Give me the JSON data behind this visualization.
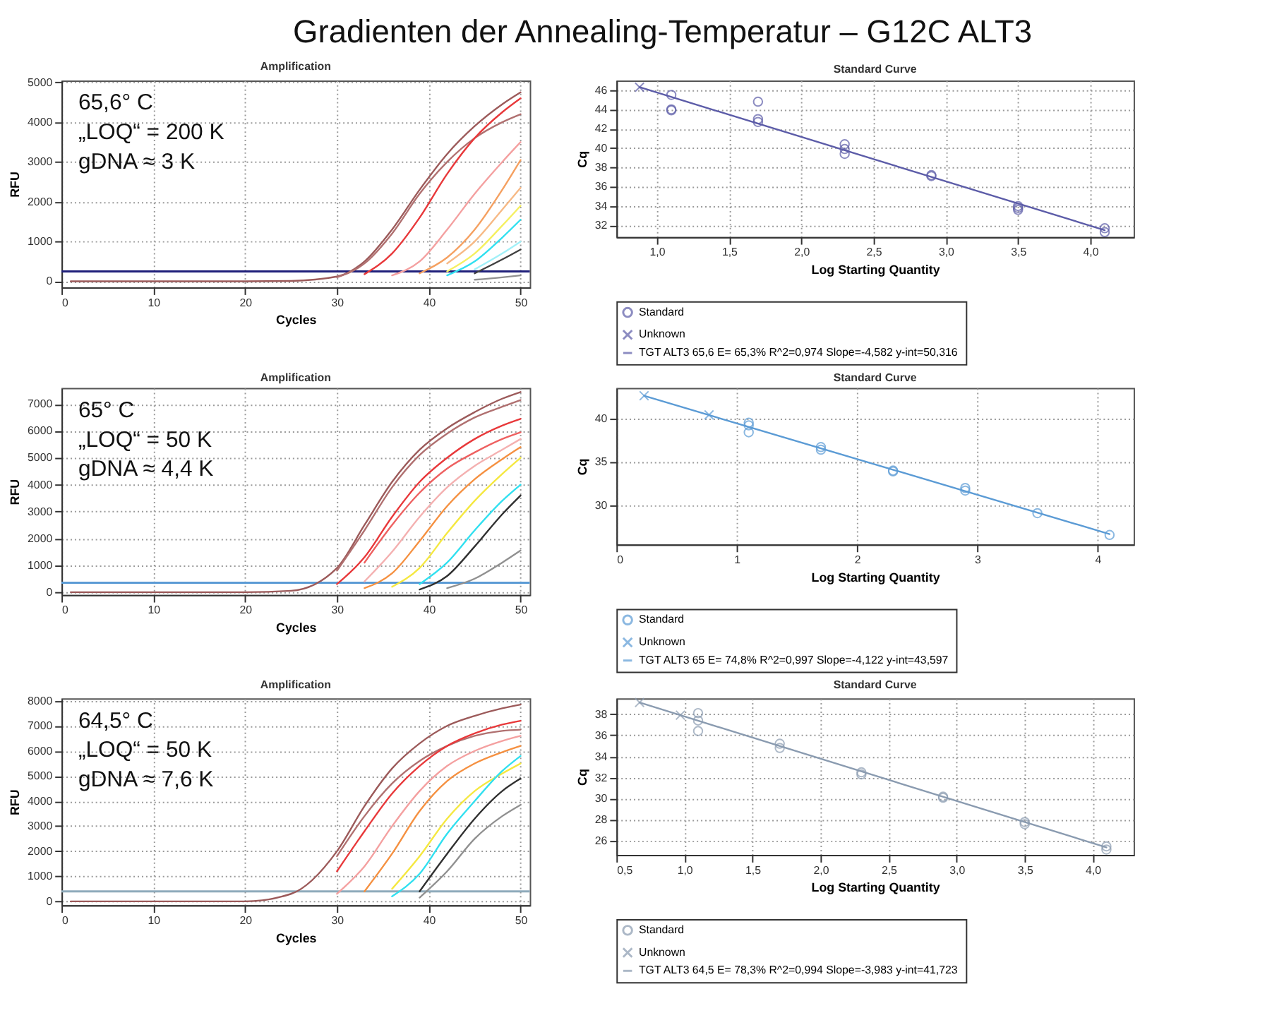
{
  "chart_data": [
    {
      "type": "other",
      "title": "Gradienten der Annealing-Temperatur – G12C ALT3"
    },
    {
      "type": "line",
      "title": "Amplification",
      "xlabel": "Cycles",
      "ylabel": "RFU",
      "xlim": [
        0,
        51
      ],
      "xticks": [
        0,
        10,
        20,
        30,
        40,
        50
      ],
      "ylim": [
        -150,
        5050
      ],
      "yticks": [
        0,
        1000,
        2000,
        3000,
        4000,
        5000
      ],
      "grid": true,
      "legend": false,
      "annotations": [
        "65,6° C",
        "„LOQ“ = 200 K",
        "gDNA ≈ 3 K"
      ],
      "ref_lines": [
        {
          "axis": "y",
          "value": 250,
          "color": "#1f1f7a"
        }
      ],
      "series": [
        {
          "color": "#9c5a5a",
          "x": [
            1,
            20,
            25,
            30,
            33,
            36,
            39,
            42,
            45,
            48,
            50
          ],
          "values": [
            0,
            0,
            10,
            120,
            500,
            1300,
            2300,
            3200,
            3900,
            4450,
            4750
          ]
        },
        {
          "color": "#b07070",
          "x": [
            30,
            33,
            36,
            39,
            42,
            45,
            48,
            50
          ],
          "values": [
            100,
            450,
            1200,
            2200,
            3000,
            3600,
            4000,
            4200
          ]
        },
        {
          "color": "#e8383a",
          "x": [
            33,
            36,
            39,
            42,
            45,
            48,
            50
          ],
          "values": [
            180,
            700,
            1600,
            2700,
            3600,
            4250,
            4600
          ]
        },
        {
          "color": "#f4a0a0",
          "x": [
            36,
            39,
            42,
            45,
            48,
            50
          ],
          "values": [
            150,
            500,
            1300,
            2200,
            3000,
            3500
          ]
        },
        {
          "color": "#f5a060",
          "x": [
            39,
            42,
            45,
            48,
            50
          ],
          "values": [
            200,
            600,
            1300,
            2300,
            3050
          ]
        },
        {
          "color": "#f7b985",
          "x": [
            42,
            45,
            48,
            50
          ],
          "values": [
            450,
            1000,
            1800,
            2350
          ]
        },
        {
          "color": "#f5f060",
          "x": [
            42,
            45,
            48,
            50
          ],
          "values": [
            250,
            700,
            1400,
            1900
          ]
        },
        {
          "color": "#30e0f0",
          "x": [
            42,
            45,
            48,
            50
          ],
          "values": [
            150,
            500,
            1100,
            1550
          ]
        },
        {
          "color": "#a0f0f8",
          "x": [
            45,
            48,
            50
          ],
          "values": [
            300,
            700,
            1000
          ]
        },
        {
          "color": "#404040",
          "x": [
            45,
            48,
            50
          ],
          "values": [
            200,
            550,
            800
          ]
        },
        {
          "color": "#909090",
          "x": [
            45,
            48,
            50
          ],
          "values": [
            40,
            100,
            150
          ]
        }
      ]
    },
    {
      "type": "scatter",
      "title": "Standard Curve",
      "xlabel": "Log Starting Quantity",
      "ylabel": "Cq",
      "xlim": [
        0.72,
        4.3
      ],
      "xticks": [
        {
          "value": 1.0,
          "label": "1,0"
        },
        {
          "value": 1.5,
          "label": "1,5"
        },
        {
          "value": 2.0,
          "label": "2,0"
        },
        {
          "value": 2.5,
          "label": "2,5"
        },
        {
          "value": 3.0,
          "label": "3,0"
        },
        {
          "value": 3.5,
          "label": "3,5"
        },
        {
          "value": 4.0,
          "label": "4,0"
        }
      ],
      "ylim": [
        30.8,
        47
      ],
      "yticks": [
        32,
        34,
        36,
        38,
        40,
        42,
        44,
        46
      ],
      "grid": true,
      "legend": "bottom",
      "series": [
        {
          "name": "Standard",
          "color": "#5c5ca8",
          "marker": "circle",
          "x": [
            1.1,
            1.1,
            1.1,
            1.7,
            1.7,
            1.7,
            2.3,
            2.3,
            2.3,
            2.9,
            2.9,
            3.5,
            3.5,
            3.5,
            4.1,
            4.1
          ],
          "values": [
            45.5,
            44.0,
            43.9,
            44.8,
            43.0,
            42.7,
            40.4,
            39.9,
            39.4,
            37.2,
            37.1,
            34.0,
            33.8,
            33.6,
            31.7,
            31.3
          ]
        },
        {
          "name": "Unknown",
          "color": "#5c5ca8",
          "marker": "cross",
          "x": [
            0.88
          ],
          "values": [
            46.3
          ]
        },
        {
          "name": "TGT ALT3 65,6 E= 65,3% R^2=0,974 Slope=-4,582 y-int=50,316",
          "color": "#5c5ca8",
          "type": "line",
          "x": [
            0.88,
            4.1
          ],
          "values": [
            46.3,
            31.5
          ]
        }
      ]
    },
    {
      "type": "line",
      "title": "Amplification",
      "xlabel": "Cycles",
      "ylabel": "RFU",
      "xlim": [
        0,
        51
      ],
      "xticks": [
        0,
        10,
        20,
        30,
        40,
        50
      ],
      "ylim": [
        -100,
        7600
      ],
      "yticks": [
        0,
        1000,
        2000,
        3000,
        4000,
        5000,
        6000,
        7000
      ],
      "grid": true,
      "legend": false,
      "annotations": [
        "65° C",
        "„LOQ“ = 50 K",
        "gDNA ≈ 4,4 K"
      ],
      "ref_lines": [
        {
          "axis": "y",
          "value": 350,
          "color": "#5b9bd5"
        }
      ],
      "series": [
        {
          "color": "#9c5a5a",
          "x": [
            1,
            20,
            25,
            30,
            33,
            36,
            39,
            42,
            45,
            48,
            50
          ],
          "values": [
            0,
            0,
            50,
            900,
            2500,
            4100,
            5300,
            6100,
            6700,
            7200,
            7450
          ]
        },
        {
          "color": "#b07070",
          "x": [
            30,
            33,
            36,
            39,
            42,
            45,
            48,
            50
          ],
          "values": [
            800,
            2300,
            3900,
            5100,
            5900,
            6500,
            6900,
            7150
          ]
        },
        {
          "color": "#e8383a",
          "x": [
            30,
            33,
            36,
            39,
            42,
            45,
            48,
            50
          ],
          "values": [
            300,
            1300,
            2800,
            4100,
            5000,
            5700,
            6200,
            6450
          ]
        },
        {
          "color": "#ee6060",
          "x": [
            33,
            36,
            39,
            42,
            45,
            48,
            50
          ],
          "values": [
            1100,
            2500,
            3700,
            4600,
            5200,
            5700,
            5950
          ]
        },
        {
          "color": "#f4b0b0",
          "x": [
            33,
            36,
            39,
            42,
            45,
            48,
            50
          ],
          "values": [
            400,
            1500,
            2800,
            3900,
            4700,
            5300,
            5700
          ]
        },
        {
          "color": "#f59040",
          "x": [
            33,
            36,
            39,
            42,
            45,
            48,
            50
          ],
          "values": [
            150,
            700,
            1900,
            3200,
            4200,
            4950,
            5400
          ]
        },
        {
          "color": "#f5e840",
          "x": [
            36,
            39,
            42,
            45,
            48,
            50
          ],
          "values": [
            200,
            900,
            2200,
            3400,
            4400,
            5000
          ]
        },
        {
          "color": "#30e0f0",
          "x": [
            39,
            42,
            45,
            48,
            50
          ],
          "values": [
            300,
            1100,
            2300,
            3400,
            4000
          ]
        },
        {
          "color": "#303030",
          "x": [
            39,
            42,
            45,
            48,
            50
          ],
          "values": [
            100,
            600,
            1700,
            2900,
            3600
          ]
        },
        {
          "color": "#909090",
          "x": [
            42,
            45,
            48,
            50
          ],
          "values": [
            150,
            500,
            1100,
            1550
          ]
        }
      ]
    },
    {
      "type": "scatter",
      "title": "Standard Curve",
      "xlabel": "Log Starting Quantity",
      "ylabel": "Cq",
      "xlim": [
        0,
        4.3
      ],
      "xticks": [
        0,
        1,
        2,
        3,
        4
      ],
      "ylim": [
        25.5,
        43.5
      ],
      "yticks": [
        30,
        35,
        40
      ],
      "grid": true,
      "legend": "bottom",
      "series": [
        {
          "name": "Standard",
          "color": "#5b9bd5",
          "marker": "circle",
          "x": [
            1.1,
            1.1,
            1.1,
            1.7,
            1.7,
            2.3,
            2.3,
            2.9,
            2.9,
            3.5,
            4.1
          ],
          "values": [
            39.5,
            39.2,
            38.4,
            36.7,
            36.4,
            34.0,
            33.9,
            32.0,
            31.7,
            29.1,
            26.6
          ]
        },
        {
          "name": "Unknown",
          "color": "#5b9bd5",
          "marker": "cross",
          "x": [
            0.23,
            0.77
          ],
          "values": [
            42.6,
            40.4
          ]
        },
        {
          "name": "TGT ALT3 65 E= 74,8% R^2=0,997 Slope=-4,122 y-int=43,597",
          "color": "#5b9bd5",
          "type": "line",
          "x": [
            0.23,
            4.1
          ],
          "values": [
            42.6,
            26.7
          ]
        }
      ]
    },
    {
      "type": "line",
      "title": "Amplification",
      "xlabel": "Cycles",
      "ylabel": "RFU",
      "xlim": [
        0,
        51
      ],
      "xticks": [
        0,
        10,
        20,
        30,
        40,
        50
      ],
      "ylim": [
        -150,
        8100
      ],
      "yticks": [
        0,
        1000,
        2000,
        3000,
        4000,
        5000,
        6000,
        7000,
        8000
      ],
      "grid": true,
      "legend": false,
      "annotations": [
        "64,5° C",
        "„LOQ“ = 50 K",
        "gDNA ≈ 7,6 K"
      ],
      "ref_lines": [
        {
          "axis": "y",
          "value": 400,
          "color": "#8eaabb"
        }
      ],
      "series": [
        {
          "color": "#9c5a5a",
          "x": [
            1,
            20,
            25,
            30,
            33,
            36,
            39,
            42,
            45,
            48,
            50
          ],
          "values": [
            0,
            0,
            300,
            2000,
            3800,
            5300,
            6300,
            7000,
            7400,
            7700,
            7850
          ]
        },
        {
          "color": "#b07070",
          "x": [
            30,
            33,
            36,
            39,
            42,
            45,
            48,
            50
          ],
          "values": [
            1800,
            3400,
            4700,
            5600,
            6200,
            6600,
            6800,
            6850
          ]
        },
        {
          "color": "#e8383a",
          "x": [
            30,
            33,
            36,
            39,
            42,
            45,
            48,
            50
          ],
          "values": [
            1200,
            2800,
            4300,
            5400,
            6200,
            6700,
            7050,
            7200
          ]
        },
        {
          "color": "#f4a0a0",
          "x": [
            30,
            33,
            36,
            39,
            42,
            45,
            48,
            50
          ],
          "values": [
            300,
            1400,
            3000,
            4400,
            5400,
            6000,
            6400,
            6600
          ]
        },
        {
          "color": "#f59040",
          "x": [
            33,
            36,
            39,
            42,
            45,
            48,
            50
          ],
          "values": [
            400,
            1900,
            3600,
            4800,
            5500,
            5950,
            6200
          ]
        },
        {
          "color": "#f5e840",
          "x": [
            36,
            39,
            42,
            45,
            48,
            50
          ],
          "values": [
            500,
            1800,
            3300,
            4400,
            5100,
            5500
          ]
        },
        {
          "color": "#30e0f0",
          "x": [
            36,
            39,
            42,
            45,
            48,
            50
          ],
          "values": [
            200,
            1100,
            2700,
            4000,
            5200,
            5800
          ]
        },
        {
          "color": "#303030",
          "x": [
            39,
            42,
            45,
            48,
            50
          ],
          "values": [
            400,
            1900,
            3300,
            4400,
            4900
          ]
        },
        {
          "color": "#909090",
          "x": [
            39,
            42,
            45,
            48,
            50
          ],
          "values": [
            150,
            1200,
            2500,
            3400,
            3850
          ]
        }
      ]
    },
    {
      "type": "scatter",
      "title": "Standard Curve",
      "xlabel": "Log Starting Quantity",
      "ylabel": "Cq",
      "xlim": [
        0.5,
        4.3
      ],
      "xticks": [
        {
          "value": 0.5,
          "label": "0,5"
        },
        {
          "value": 1.0,
          "label": "1,0"
        },
        {
          "value": 1.5,
          "label": "1,5"
        },
        {
          "value": 2.0,
          "label": "2,0"
        },
        {
          "value": 2.5,
          "label": "2,5"
        },
        {
          "value": 3.0,
          "label": "3,0"
        },
        {
          "value": 3.5,
          "label": "3,5"
        },
        {
          "value": 4.0,
          "label": "4,0"
        }
      ],
      "ylim": [
        24.7,
        39.5
      ],
      "yticks": [
        26,
        28,
        30,
        32,
        34,
        36,
        38
      ],
      "grid": true,
      "legend": "bottom",
      "series": [
        {
          "name": "Standard",
          "color": "#8a9bb0",
          "marker": "circle",
          "x": [
            1.1,
            1.1,
            1.1,
            1.7,
            1.7,
            2.3,
            2.3,
            2.9,
            2.9,
            3.5,
            3.5,
            4.1,
            4.1
          ],
          "values": [
            38.1,
            37.4,
            36.4,
            35.2,
            34.8,
            32.5,
            32.3,
            30.2,
            30.1,
            27.8,
            27.6,
            25.5,
            25.2
          ]
        },
        {
          "name": "Unknown",
          "color": "#8a9bb0",
          "marker": "cross",
          "x": [
            0.67,
            0.97
          ],
          "values": [
            39.1,
            37.9
          ]
        },
        {
          "name": "TGT ALT3 64,5 E= 78,3% R^2=0,994 Slope=-3,983 y-int=41,723",
          "color": "#8a9bb0",
          "type": "line",
          "x": [
            0.67,
            4.1
          ],
          "values": [
            39.1,
            25.4
          ]
        }
      ]
    }
  ]
}
